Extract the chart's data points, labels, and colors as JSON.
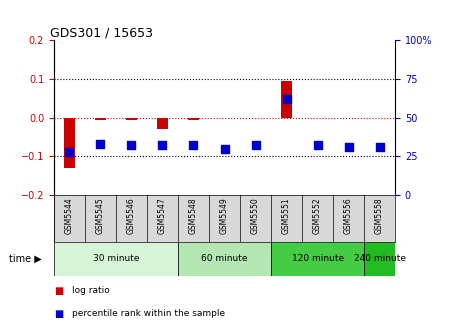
{
  "title": "GDS301 / 15653",
  "samples": [
    "GSM5544",
    "GSM5545",
    "GSM5546",
    "GSM5547",
    "GSM5548",
    "GSM5549",
    "GSM5550",
    "GSM5551",
    "GSM5552",
    "GSM5556",
    "GSM5558"
  ],
  "log_ratio": [
    -0.13,
    -0.005,
    -0.005,
    -0.03,
    -0.005,
    -0.002,
    -0.002,
    0.095,
    -0.002,
    -0.002,
    -0.002
  ],
  "percentile_rank": [
    28,
    33,
    32,
    32,
    32,
    30,
    32,
    62,
    32,
    31,
    31
  ],
  "group_defs": [
    {
      "label": "30 minute",
      "start": 0,
      "end": 3,
      "color": "#d6f5d6"
    },
    {
      "label": "60 minute",
      "start": 4,
      "end": 6,
      "color": "#b3e6b3"
    },
    {
      "label": "120 minute",
      "start": 7,
      "end": 9,
      "color": "#44cc44"
    },
    {
      "label": "240 minute",
      "start": 10,
      "end": 10,
      "color": "#22bb22"
    }
  ],
  "ylim_left": [
    -0.2,
    0.2
  ],
  "ylim_right": [
    0,
    100
  ],
  "yticks_left": [
    -0.2,
    -0.1,
    0.0,
    0.1,
    0.2
  ],
  "yticks_right": [
    0,
    25,
    50,
    75,
    100
  ],
  "bar_color": "#cc0000",
  "dot_color": "#0000cc",
  "zero_line_color": "#cc0000",
  "hline_color": "#000000",
  "sample_bg_color": "#d8d8d8",
  "bar_width": 0.35,
  "dot_size": 30
}
